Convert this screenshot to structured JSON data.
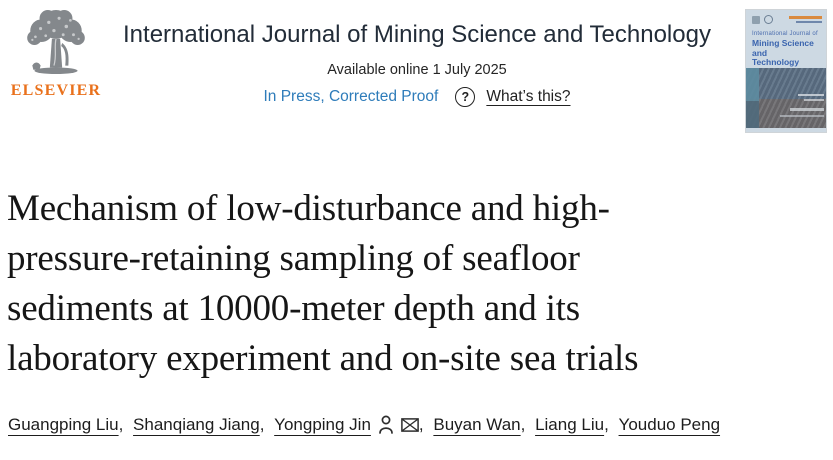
{
  "header": {
    "elsevier_wordmark": "ELSEVIER",
    "journal_title": "International Journal of Mining Science and Technology",
    "available_online": "Available online 1 July 2025",
    "status_label": "In Press, Corrected Proof",
    "help_icon_glyph": "?",
    "whats_this_label": "What’s this?"
  },
  "cover": {
    "title_small": "International Journal of",
    "title_bold_lines": [
      "Mining Science",
      "and",
      "Technology"
    ]
  },
  "article": {
    "title_lines": [
      "Mechanism of low-disturbance and high-",
      "pressure-retaining sampling of seafloor",
      "sediments at 10000-meter depth and its",
      "laboratory experiment and on-site sea trials"
    ]
  },
  "authors": [
    {
      "name": "Guangping Liu",
      "corresponding": false
    },
    {
      "name": "Shanqiang Jiang",
      "corresponding": false
    },
    {
      "name": "Yongping Jin",
      "corresponding": true
    },
    {
      "name": "Buyan Wan",
      "corresponding": false
    },
    {
      "name": "Liang Liu",
      "corresponding": false
    },
    {
      "name": "Youduo Peng",
      "corresponding": false
    }
  ],
  "colors": {
    "elsevier_orange": "#e9711c",
    "status_blue": "#2e7cba",
    "journal_title_navy": "#222c38",
    "cover_blue": "#3a64ae"
  }
}
